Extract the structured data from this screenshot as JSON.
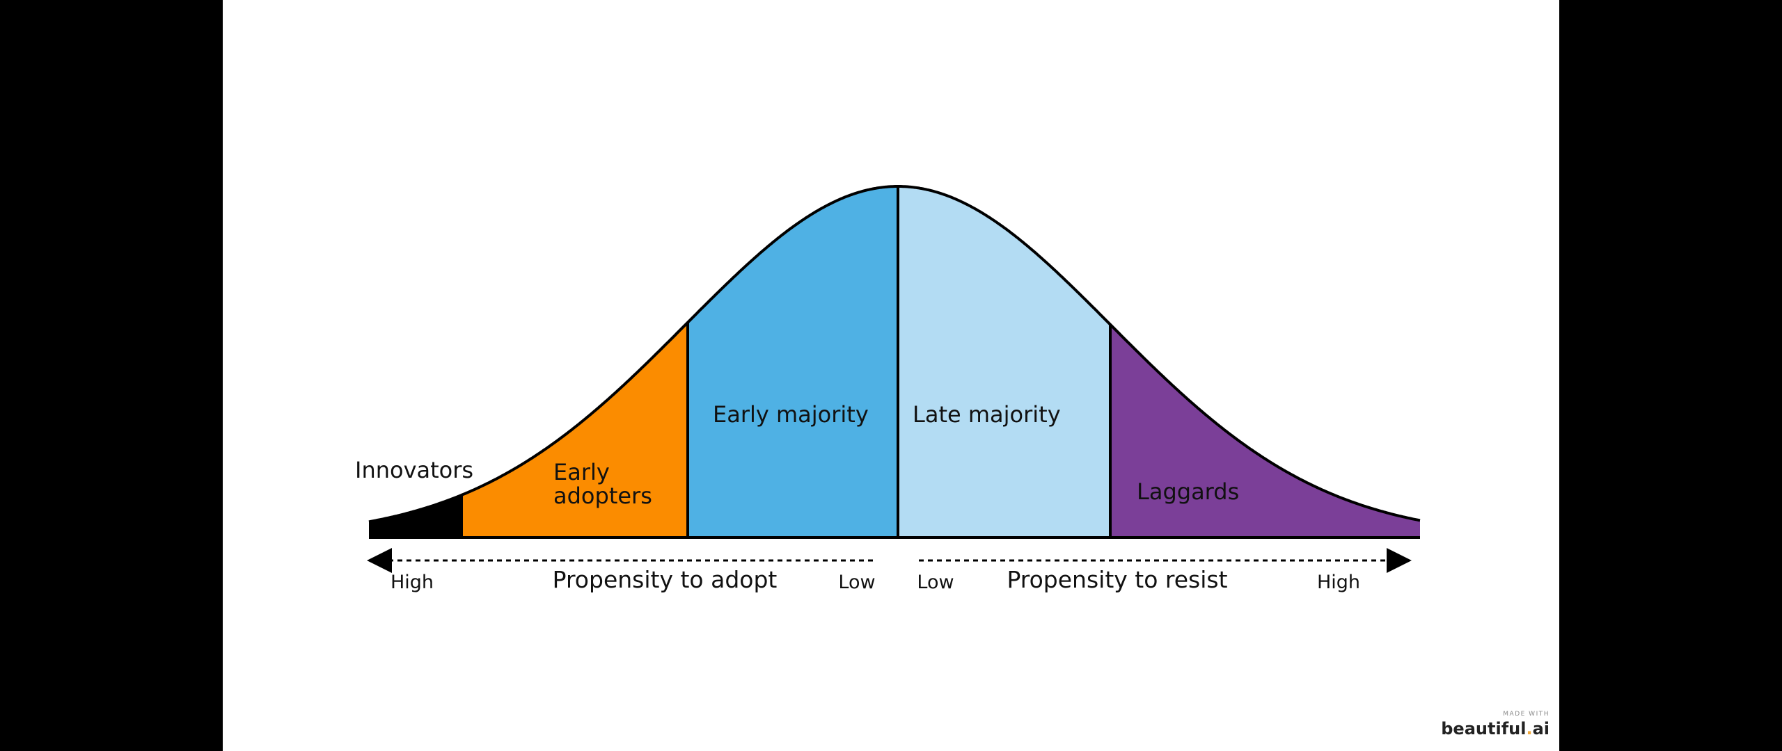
{
  "colors": {
    "innovators": "#000000",
    "early_adopters": "#fb8c00",
    "early_majority": "#4fb1e4",
    "late_majority": "#b3dcf3",
    "laggards": "#7b3f98",
    "outline": "#000000"
  },
  "segments": [
    {
      "id": "innovators",
      "label_lines": [
        "Innovators"
      ]
    },
    {
      "id": "early_adopters",
      "label_lines": [
        "Early",
        "adopters"
      ]
    },
    {
      "id": "early_majority",
      "label_lines": [
        "Early majority"
      ]
    },
    {
      "id": "late_majority",
      "label_lines": [
        "Late majority"
      ]
    },
    {
      "id": "laggards",
      "label_lines": [
        "Laggards"
      ]
    }
  ],
  "axis": {
    "adopt": {
      "title": "Propensity to adopt",
      "start": "High",
      "end": "Low"
    },
    "resist": {
      "title": "Propensity to resist",
      "start": "Low",
      "end": "High"
    }
  },
  "watermark": {
    "made_with": "MADE WITH",
    "brand": "beautiful",
    "brand_dot": ".",
    "brand_suffix": "ai"
  }
}
